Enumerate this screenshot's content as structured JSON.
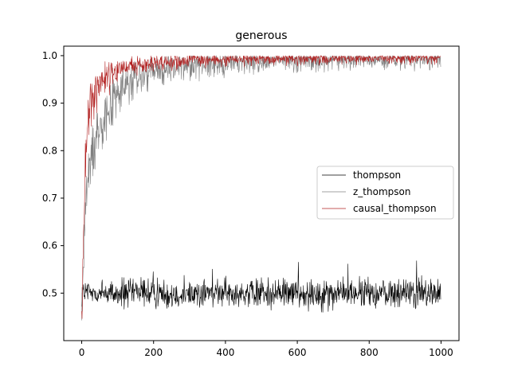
{
  "chart_data": {
    "type": "line",
    "title": "generous",
    "xlabel": "",
    "ylabel": "",
    "xlim": [
      -50,
      1050
    ],
    "ylim": [
      0.4,
      1.02
    ],
    "xticks": [
      0,
      200,
      400,
      600,
      800,
      1000
    ],
    "yticks": [
      0.5,
      0.6,
      0.7,
      0.8,
      0.9,
      1.0
    ],
    "xtick_labels": [
      "0",
      "200",
      "400",
      "600",
      "800",
      "1000"
    ],
    "ytick_labels": [
      "0.5",
      "0.6",
      "0.7",
      "0.8",
      "0.9",
      "1.0"
    ],
    "grid": false,
    "legend_position": "center-right",
    "n_points": 1000,
    "series": [
      {
        "name": "thompson",
        "color": "#000000",
        "summary": "noisy around 0.50 for all x (range ~0.46-0.56)",
        "values_by_x": [
          [
            0,
            0.5
          ],
          [
            100,
            0.5
          ],
          [
            200,
            0.5
          ],
          [
            300,
            0.5
          ],
          [
            400,
            0.5
          ],
          [
            500,
            0.5
          ],
          [
            600,
            0.5
          ],
          [
            700,
            0.5
          ],
          [
            800,
            0.5
          ],
          [
            900,
            0.5
          ],
          [
            1000,
            0.5
          ]
        ]
      },
      {
        "name": "z_thompson",
        "color": "#808080",
        "summary": "rises from ~0.45 to ~0.99, slower than causal_thompson",
        "values_by_x": [
          [
            0,
            0.45
          ],
          [
            10,
            0.68
          ],
          [
            25,
            0.78
          ],
          [
            50,
            0.86
          ],
          [
            100,
            0.92
          ],
          [
            150,
            0.95
          ],
          [
            200,
            0.965
          ],
          [
            300,
            0.98
          ],
          [
            400,
            0.985
          ],
          [
            600,
            0.99
          ],
          [
            800,
            0.993
          ],
          [
            1000,
            0.994
          ]
        ]
      },
      {
        "name": "causal_thompson",
        "color": "#b22222",
        "summary": "rises quickly from ~0.43 to ~0.99",
        "values_by_x": [
          [
            0,
            0.43
          ],
          [
            10,
            0.8
          ],
          [
            25,
            0.9
          ],
          [
            50,
            0.95
          ],
          [
            100,
            0.97
          ],
          [
            150,
            0.98
          ],
          [
            200,
            0.985
          ],
          [
            300,
            0.99
          ],
          [
            400,
            0.993
          ],
          [
            600,
            0.995
          ],
          [
            800,
            0.995
          ],
          [
            1000,
            0.995
          ]
        ]
      }
    ]
  }
}
